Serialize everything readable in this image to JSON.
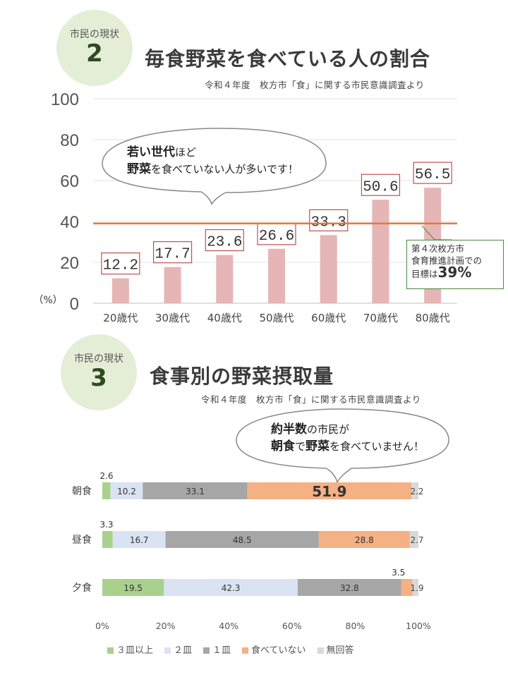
{
  "section1": {
    "badge_label": "市民の現状",
    "badge_number": "2",
    "title": "毎食野菜を食べている人の割合",
    "source": "令和４年度　枚方市「食」に関する市民意識調査より",
    "bubble_line1_bold": "若い世代",
    "bubble_line1_rest": "ほど",
    "bubble_line2_bold": "野菜",
    "bubble_line2_rest": "を食べていない人が多いです！",
    "target_line1": "第４次枚方市",
    "target_line2": "食育推進計画での",
    "target_line3_text": "目標は",
    "target_line3_value": "39%"
  },
  "section2": {
    "badge_label": "市民の現状",
    "badge_number": "3",
    "title": "食事別の野菜摂取量",
    "source": "令和４年度　枚方市「食」に関する市民意識調査より",
    "bubble_line1_bold": "約半数",
    "bubble_line1_rest": "の市民が",
    "bubble_line2_bold1": "朝食",
    "bubble_line2_mid": "で",
    "bubble_line2_bold2": "野菜",
    "bubble_line2_rest": "を食べていません！"
  },
  "chart_data": [
    {
      "type": "bar",
      "title": "毎食野菜を食べている人の割合",
      "categories": [
        "20歳代",
        "30歳代",
        "40歳代",
        "50歳代",
        "60歳代",
        "70歳代",
        "80歳代"
      ],
      "values": [
        12.2,
        17.7,
        23.6,
        26.6,
        33.3,
        50.6,
        56.5
      ],
      "value_labels": [
        "12.2",
        "17.7",
        "23.6",
        "26.6",
        "33.3",
        "50.6",
        "56.5"
      ],
      "ylabel": "（%）",
      "ylim": [
        0,
        100
      ],
      "yticks": [
        "0",
        "20",
        "40",
        "60",
        "80",
        "100"
      ],
      "target_line": 39,
      "grid": true,
      "colors": {
        "bar": "#e6b5b6",
        "label_border": "#c0504d",
        "target": "#e07b39"
      }
    },
    {
      "type": "bar",
      "orientation": "horizontal",
      "stacked": true,
      "title": "食事別の野菜摂取量",
      "categories": [
        "朝食",
        "昼食",
        "夕食"
      ],
      "series": [
        {
          "name": "３皿以上",
          "values": [
            2.6,
            3.3,
            19.5
          ],
          "color": "#a9d18e"
        },
        {
          "name": "２皿",
          "values": [
            10.2,
            16.7,
            42.3
          ],
          "color": "#dae3f3"
        },
        {
          "name": "１皿",
          "values": [
            33.1,
            48.5,
            32.8
          ],
          "color": "#a6a6a6"
        },
        {
          "name": "食べていない",
          "values": [
            51.9,
            28.8,
            3.5
          ],
          "color": "#f4b183"
        },
        {
          "name": "無回答",
          "values": [
            2.2,
            2.7,
            1.9
          ],
          "color": "#d9d9d9"
        }
      ],
      "xticks": [
        "0%",
        "20%",
        "40%",
        "60%",
        "80%",
        "100%"
      ],
      "xlim": [
        0,
        100
      ],
      "legend": "bottom"
    }
  ]
}
